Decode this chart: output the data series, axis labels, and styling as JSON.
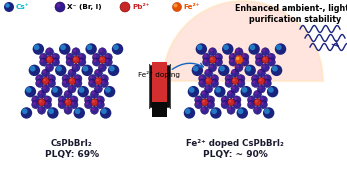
{
  "bg_color": "#ffffff",
  "title_right": "Enhanced ambient-, light-,\npurification stability",
  "label_cs": "Cs⁺",
  "label_x": "X⁻ (Br, I)",
  "label_pb": "Pb²⁺",
  "label_fe": "Fe²⁺",
  "label_left_title": "CsPbBrI₂",
  "label_left_plqy": "PLQY: 69%",
  "label_right_title": "Fe²⁺ doped CsPbBrI₂",
  "label_right_plqy": "PLQY: ~ 90%",
  "label_fe_doping": "Fe²⁺ doping",
  "color_cs": "#1a237e",
  "color_cs_glow": "#29b6f6",
  "color_x": "#311b92",
  "color_x_inner": "#7b1fa2",
  "color_pb": "#c62828",
  "color_pb_inner": "#ef5350",
  "color_fe_ball": "#e65100",
  "color_fe_glow": "#ffb74d",
  "color_crystal_blue": "#90caf9",
  "color_crystal_edge": "#4a7fbf",
  "color_crystal_dark": "#5c8dbf",
  "color_fe_oct": "#ff8a65",
  "color_fe_oct2": "#ffcc80",
  "color_arrow": "#1565c0",
  "color_glow": "#ffccbc",
  "color_glow2": "#ffe0b2",
  "color_vial_body": "#111111",
  "color_vial_liquid": "#d32f2f",
  "color_wave": "#1a237e",
  "color_label": "#1a1a2e",
  "figsize": [
    3.47,
    1.89
  ],
  "dpi": 100
}
